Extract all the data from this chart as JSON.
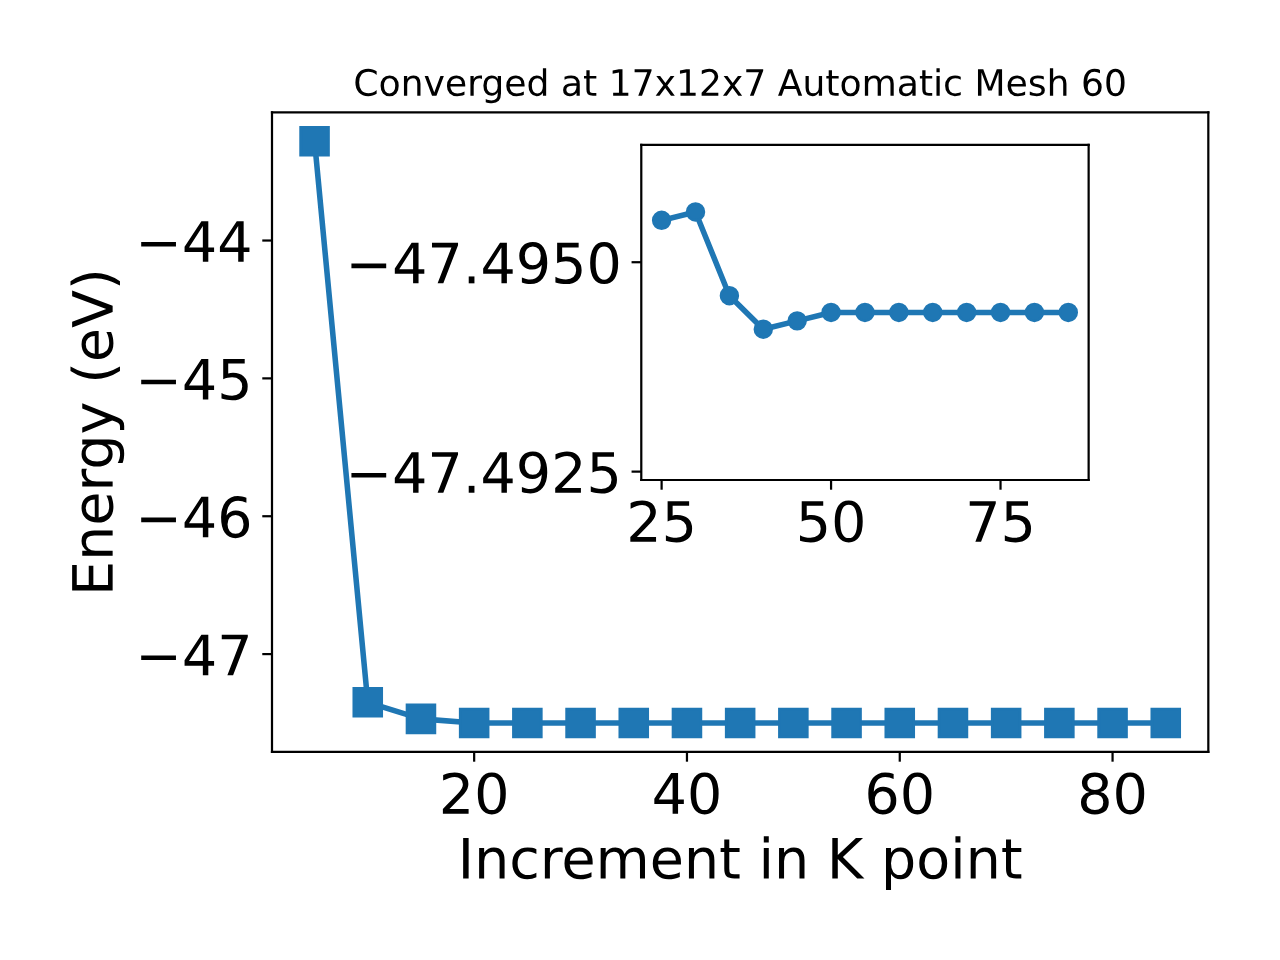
{
  "chart_data": [
    {
      "type": "line",
      "title": "Converged at 17x12x7 Automatic Mesh 60",
      "xlabel": "Increment in K point",
      "ylabel": "Energy (eV)",
      "x": [
        5,
        10,
        15,
        20,
        25,
        30,
        35,
        40,
        45,
        50,
        55,
        60,
        65,
        70,
        75,
        80,
        85
      ],
      "series": [
        {
          "color": "#1f77b4",
          "values": [
            -43.28,
            -47.35,
            -47.47,
            -47.5,
            -47.5,
            -47.5,
            -47.5,
            -47.5,
            -47.5,
            -47.5,
            -47.5,
            -47.5,
            -47.5,
            -47.5,
            -47.5,
            -47.5,
            -47.5
          ]
        }
      ],
      "marker": "square",
      "line_style": "solid",
      "xlim": [
        1,
        89
      ],
      "ylim": [
        -47.71,
        -43.07
      ],
      "xticks": [
        20,
        40,
        60,
        80
      ],
      "yticks": [
        {
          "value": -47,
          "label": "−47"
        },
        {
          "value": -46,
          "label": "−46"
        },
        {
          "value": -45,
          "label": "−45"
        },
        {
          "value": -44,
          "label": "−44"
        }
      ],
      "grid": false,
      "legend": false
    },
    {
      "type": "line",
      "x": [
        25,
        30,
        35,
        40,
        45,
        50,
        55,
        60,
        65,
        70,
        75,
        80,
        85
      ],
      "series": [
        {
          "color": "#1f77b4",
          "values": [
            -47.4955,
            -47.4956,
            -47.4946,
            -47.4942,
            -47.4943,
            -47.4944,
            -47.4944,
            -47.4944,
            -47.4944,
            -47.4944,
            -47.4944,
            -47.4944,
            -47.4944
          ]
        }
      ],
      "marker": "circle",
      "line_style": "solid",
      "xlim": [
        22,
        88
      ],
      "ylim": [
        -47.4924,
        -47.4964
      ],
      "xticks": [
        25,
        50,
        75
      ],
      "yticks": [
        {
          "value": -47.495,
          "label": "−47.4950"
        },
        {
          "value": -47.4925,
          "label": "−47.4925"
        }
      ],
      "grid": false,
      "legend": false
    }
  ]
}
